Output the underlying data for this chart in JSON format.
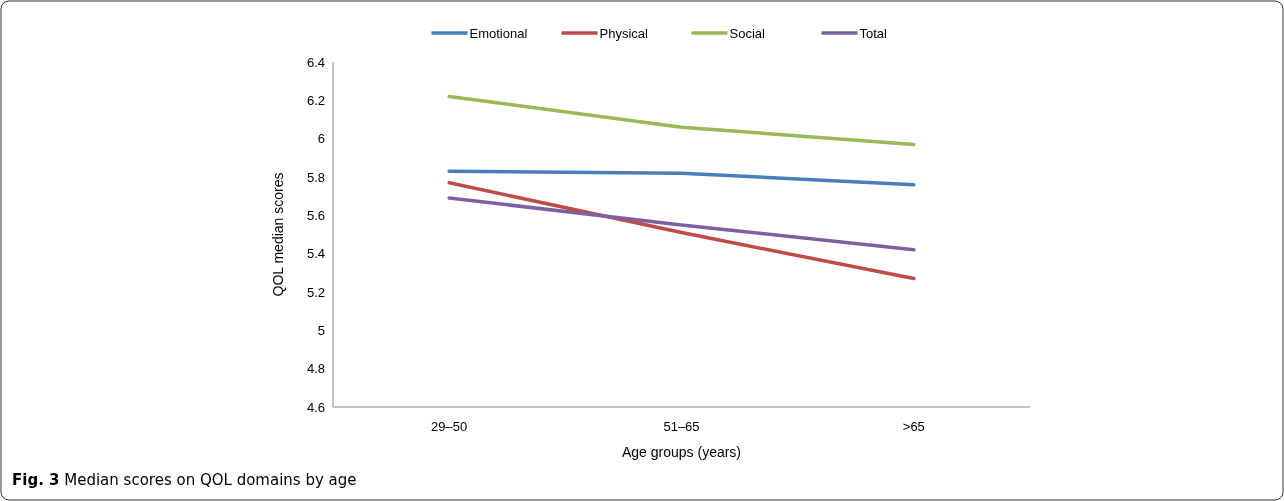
{
  "chart_data": {
    "type": "line",
    "title": "Fig. 3 Median scores on QOL domains by age",
    "xlabel": "Age groups (years)",
    "ylabel": "QOL median scores",
    "categories": [
      "29–50",
      "51–65",
      ">65"
    ],
    "series": [
      {
        "name": "Emotional",
        "color": "#4a7ebb",
        "values": [
          5.83,
          5.82,
          5.76
        ]
      },
      {
        "name": "Physical",
        "color": "#be4b48",
        "values": [
          5.77,
          5.51,
          5.27
        ]
      },
      {
        "name": "Social",
        "color": "#98b954",
        "values": [
          6.22,
          6.06,
          5.97
        ]
      },
      {
        "name": "Total",
        "color": "#7d60a0",
        "values": [
          5.69,
          5.55,
          5.42
        ]
      }
    ],
    "ylim": [
      4.6,
      6.4
    ],
    "yticks": [
      4.6,
      4.8,
      5,
      5.2,
      5.4,
      5.6,
      5.8,
      6,
      6.2,
      6.4
    ],
    "legend": "top",
    "grid": false
  }
}
